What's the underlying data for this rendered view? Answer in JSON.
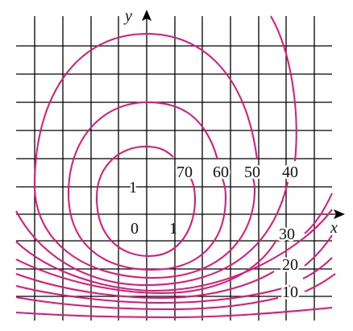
{
  "axes": {
    "x_label": "x",
    "y_label": "y",
    "origin_label": "0",
    "x_tick_label": "1",
    "y_tick_label": "1"
  },
  "contour_labels": [
    "70",
    "60",
    "50",
    "40",
    "30",
    "20",
    "10"
  ],
  "colors": {
    "curve": "#e0157a",
    "grid": "#000000",
    "text": "#111111"
  }
}
